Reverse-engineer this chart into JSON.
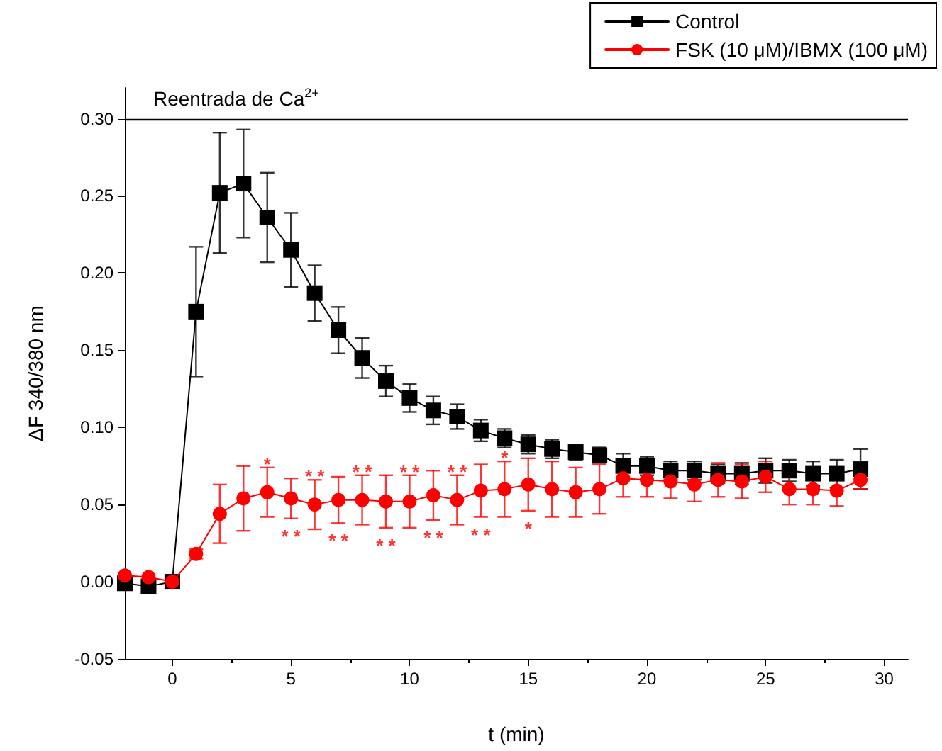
{
  "chart_data": {
    "type": "line",
    "xlabel": "t (min)",
    "ylabel": "ΔF 340/380 nm",
    "x": [
      -2,
      -1,
      0,
      1,
      2,
      3,
      4,
      5,
      6,
      7,
      8,
      9,
      10,
      11,
      12,
      13,
      14,
      15,
      16,
      17,
      18,
      19,
      20,
      21,
      22,
      23,
      24,
      25,
      26,
      27,
      28,
      29
    ],
    "series": [
      {
        "name": "Control",
        "color": "#000000",
        "marker": "square",
        "values": [
          -0.001,
          -0.003,
          0.0,
          0.175,
          0.252,
          0.258,
          0.236,
          0.215,
          0.187,
          0.163,
          0.145,
          0.13,
          0.119,
          0.111,
          0.107,
          0.098,
          0.093,
          0.089,
          0.086,
          0.084,
          0.082,
          0.075,
          0.075,
          0.072,
          0.072,
          0.07,
          0.07,
          0.072,
          0.072,
          0.07,
          0.07,
          0.073
        ],
        "errors": [
          null,
          null,
          null,
          0.042,
          0.039,
          0.035,
          0.029,
          0.024,
          0.018,
          0.015,
          0.013,
          0.01,
          0.009,
          0.009,
          0.008,
          0.007,
          0.006,
          0.006,
          0.006,
          0.005,
          0.005,
          0.008,
          0.006,
          0.006,
          0.006,
          0.006,
          0.007,
          0.008,
          0.007,
          0.008,
          0.009,
          0.013
        ]
      },
      {
        "name": "FSK (10 μM)/IBMX (100 μM)",
        "color": "#ff0000",
        "marker": "circle",
        "values": [
          0.004,
          0.003,
          0.0,
          0.018,
          0.044,
          0.054,
          0.058,
          0.054,
          0.05,
          0.053,
          0.053,
          0.052,
          0.052,
          0.056,
          0.053,
          0.059,
          0.06,
          0.063,
          0.06,
          0.058,
          0.06,
          0.067,
          0.066,
          0.065,
          0.063,
          0.066,
          0.065,
          0.068,
          0.06,
          0.06,
          0.059,
          0.066
        ],
        "errors": [
          null,
          null,
          null,
          0.003,
          0.019,
          0.021,
          0.016,
          0.013,
          0.016,
          0.015,
          0.016,
          0.017,
          0.017,
          0.016,
          0.016,
          0.017,
          0.018,
          0.017,
          0.018,
          0.016,
          0.016,
          0.012,
          0.011,
          0.011,
          0.011,
          0.011,
          0.011,
          0.01,
          0.01,
          0.01,
          0.01,
          0.006
        ]
      }
    ],
    "xlim": [
      -2,
      31
    ],
    "xticks": [
      0,
      5,
      10,
      15,
      20,
      25,
      30
    ],
    "ylim": [
      -0.05,
      0.32
    ],
    "yticks": [
      -0.05,
      {
        "value": 0,
        "label": "0.00"
      },
      0.05,
      {
        "value": 0.1,
        "label": "0.10"
      },
      0.15,
      {
        "value": 0.2,
        "label": "0.20"
      },
      0.25,
      {
        "value": 0.3,
        "label": "0.30"
      }
    ],
    "ref_lines": [
      {
        "axis": "y",
        "value": 0.3,
        "label": "Reentrada de Ca$^{2+}$",
        "color": "#000000"
      }
    ],
    "annotations": [
      {
        "text": "*",
        "x": 4,
        "y": 0.074
      },
      {
        "text": "* *",
        "x": 6,
        "y": 0.066
      },
      {
        "text": "* *",
        "x": 8,
        "y": 0.069
      },
      {
        "text": "* *",
        "x": 10,
        "y": 0.069
      },
      {
        "text": "* *",
        "x": 12,
        "y": 0.069
      },
      {
        "text": "*",
        "x": 14,
        "y": 0.078
      },
      {
        "text": "* *",
        "x": 5,
        "y": 0.041
      },
      {
        "text": "* *",
        "x": 7,
        "y": 0.038
      },
      {
        "text": "* *",
        "x": 9,
        "y": 0.035
      },
      {
        "text": "* *",
        "x": 11,
        "y": 0.04
      },
      {
        "text": "* *",
        "x": 13,
        "y": 0.042
      },
      {
        "text": "*",
        "x": 15,
        "y": 0.046
      }
    ],
    "legend": "top right",
    "grid": false,
    "line_style": "solid"
  }
}
